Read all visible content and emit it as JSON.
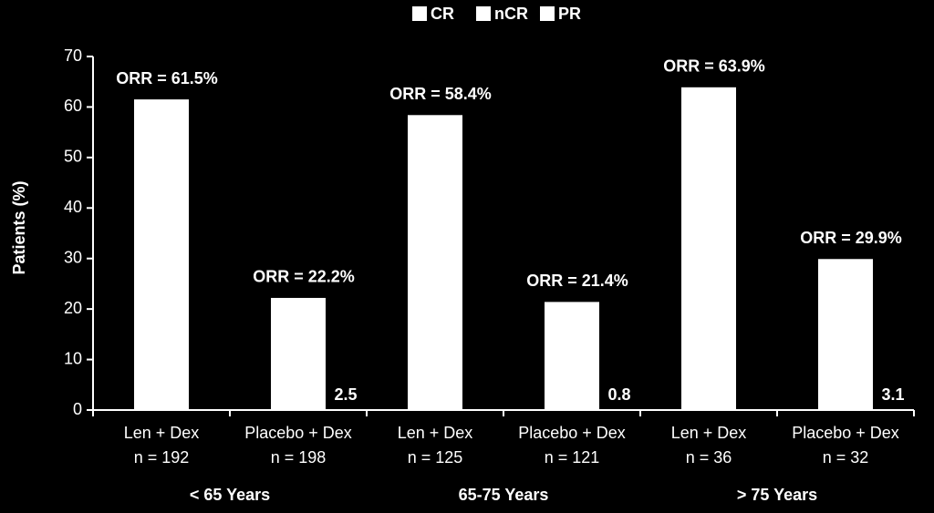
{
  "chart_data": {
    "type": "bar",
    "legend": [
      "CR",
      "nCR",
      "PR"
    ],
    "legend_position": "top",
    "color": "#ffffff",
    "y_label": "Patients (%)",
    "categories": [
      "Len + Dex",
      "Placebo + Dex",
      "Len + Dex",
      "Placebo + Dex",
      "Len + Dex",
      "Placebo + Dex"
    ],
    "category_sublabels": [
      "n = 192",
      "n = 198",
      "n = 125",
      "n = 121",
      "n = 36",
      "n = 32"
    ],
    "groups": [
      "< 65 Years",
      "65-75 Years",
      "> 75 Years"
    ],
    "values": [
      61.5,
      22.2,
      58.4,
      21.4,
      63.9,
      29.9
    ],
    "value_labels": [
      "ORR = 61.5%",
      "ORR = 22.2%",
      "ORR = 58.4%",
      "ORR = 21.4%",
      "ORR = 63.9%",
      "ORR = 29.9%"
    ],
    "annotations": [
      "2.5",
      "0.8",
      "3.1"
    ],
    "ylim": [
      0,
      70
    ],
    "yticks": [
      0,
      10,
      20,
      30,
      40,
      50,
      60,
      70
    ]
  }
}
